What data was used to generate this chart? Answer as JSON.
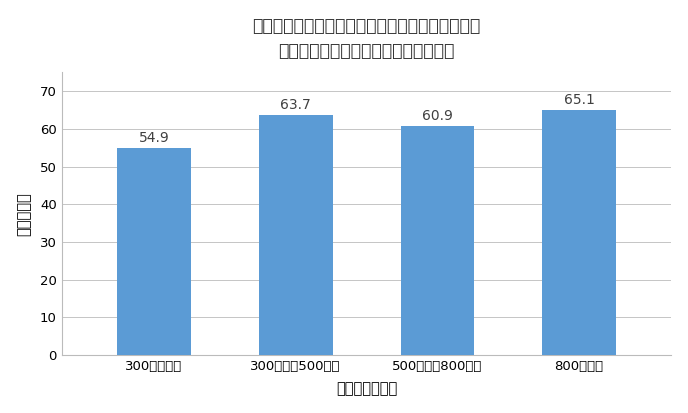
{
  "title_line1": "図２　世帯収入別に見た新型コロナのワクチンを",
  "title_line2": "接種するつもりと回答した人々の割合",
  "categories": [
    "300万円未満",
    "300万円～500万円",
    "500万円～800万円",
    "800万円～"
  ],
  "values": [
    54.9,
    63.7,
    60.9,
    65.1
  ],
  "bar_color": "#5B9BD5",
  "xlabel": "年間の世帯収入",
  "ylabel": "割合（％）",
  "ylim": [
    0,
    75
  ],
  "yticks": [
    0,
    10,
    20,
    30,
    40,
    50,
    60,
    70
  ],
  "background_color": "#FFFFFF",
  "grid_color": "#BBBBBB",
  "title_fontsize": 12.5,
  "label_fontsize": 10.5,
  "tick_fontsize": 9.5,
  "value_fontsize": 10
}
